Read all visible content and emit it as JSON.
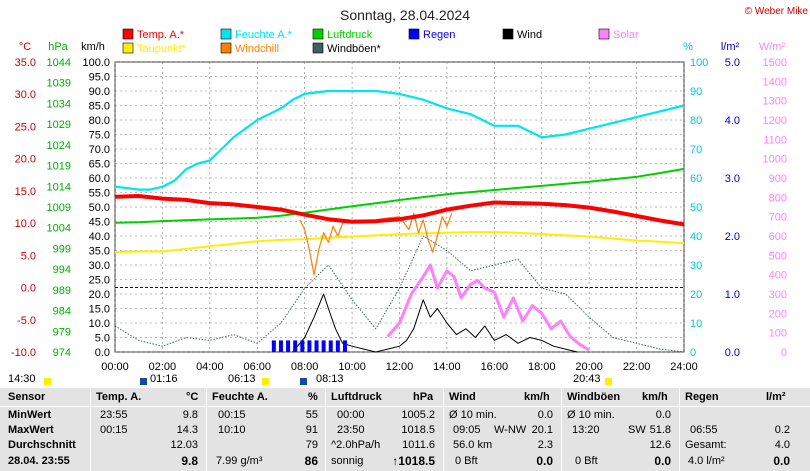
{
  "page": {
    "title": "Sonntag, 28.04.2024",
    "credit": "© Weber Mike"
  },
  "colors": {
    "temp": "#ff0000",
    "feuchte": "#00e5ee",
    "luftdruck": "#00d000",
    "taupunkt": "#ffee00",
    "windchill": "#ff8000",
    "windboeen": "#406060",
    "regen": "#0000ff",
    "wind": "#000000",
    "solar": "#ff80ff",
    "grid": "#7a7a7a",
    "dew0": "#0000cc"
  },
  "legend": [
    {
      "key": "temp",
      "label": "Temp. A.*",
      "color": "#ff0000"
    },
    {
      "key": "feuchte",
      "label": "Feuchte A.*",
      "color": "#00e5ee"
    },
    {
      "key": "luftdruck",
      "label": "Luftdruck",
      "color": "#00d000"
    },
    {
      "key": "regen",
      "label": "Regen",
      "color": "#0000ff"
    },
    {
      "key": "wind",
      "label": "Wind",
      "color": "#000000"
    },
    {
      "key": "solar",
      "label": "Solar",
      "color": "#ff80ff"
    },
    {
      "key": "taupunkt",
      "label": "Taupunkt*",
      "color": "#ffee00"
    },
    {
      "key": "windchill",
      "label": "Windchill",
      "color": "#ff8000"
    },
    {
      "key": "windboeen",
      "label": "Windböen*",
      "color": "#406060"
    }
  ],
  "chart_data": {
    "type": "line",
    "title": "Sonntag, 28.04.2024",
    "x_unit": "hour",
    "x_ticks": [
      "00:00",
      "02:00",
      "04:00",
      "06:00",
      "08:00",
      "10:00",
      "12:00",
      "14:00",
      "16:00",
      "18:00",
      "20:00",
      "22:00",
      "24:00"
    ],
    "axes": {
      "celsius": {
        "label": "°C",
        "range": [
          -10,
          35
        ],
        "ticks": [
          "35.0",
          "30.0",
          "25.0",
          "20.0",
          "15.0",
          "10.0",
          "5.0",
          "0.0",
          "-5.0",
          "-10.0"
        ]
      },
      "hpa": {
        "label": "hPa",
        "range": [
          974,
          1044
        ],
        "ticks": [
          "1044",
          "1039",
          "1034",
          "1029",
          "1024",
          "1019",
          "1014",
          "1009",
          "1004",
          "999",
          "994",
          "989",
          "984",
          "979",
          "974"
        ]
      },
      "kmh": {
        "label": "km/h",
        "range": [
          0,
          100
        ],
        "ticks": [
          "100.0",
          "95.0",
          "90.0",
          "85.0",
          "80.0",
          "75.0",
          "70.0",
          "65.0",
          "60.0",
          "55.0",
          "50.0",
          "45.0",
          "40.0",
          "35.0",
          "30.0",
          "25.0",
          "20.0",
          "15.0",
          "10.0",
          "5.0",
          "0.0"
        ]
      },
      "percent": {
        "label": "%",
        "range": [
          0,
          100
        ],
        "ticks": [
          "100",
          "90",
          "80",
          "70",
          "60",
          "50",
          "40",
          "30",
          "20",
          "10",
          "0"
        ]
      },
      "rain": {
        "label": "l/m²",
        "range": [
          0,
          5
        ],
        "ticks": [
          "5.0",
          "4.0",
          "3.0",
          "2.0",
          "1.0",
          "0.0"
        ]
      },
      "solar": {
        "label": "W/m²",
        "range": [
          0,
          1500
        ],
        "ticks": [
          "1500",
          "1400",
          "1300",
          "1200",
          "1100",
          "1000",
          "900",
          "800",
          "700",
          "600",
          "500",
          "400",
          "300",
          "200",
          "100",
          "0"
        ]
      }
    },
    "series": [
      {
        "name": "Temp. A.*",
        "axis": "celsius",
        "x": [
          0,
          1,
          2,
          3,
          4,
          5,
          6,
          7,
          8,
          9,
          10,
          11,
          12,
          13,
          14,
          15,
          16,
          17,
          18,
          19,
          20,
          21,
          22,
          23,
          24
        ],
        "y": [
          14.1,
          14.2,
          13.8,
          13.6,
          13.1,
          12.9,
          12.5,
          12.1,
          11.3,
          10.6,
          10.2,
          10.3,
          10.6,
          11.2,
          12.1,
          12.7,
          13.2,
          13.1,
          13.0,
          12.8,
          12.4,
          11.8,
          11.1,
          10.4,
          9.8
        ]
      },
      {
        "name": "Feuchte A.*",
        "axis": "percent",
        "x": [
          0,
          1,
          1.5,
          2,
          2.5,
          3,
          3.5,
          4,
          4.5,
          5,
          5.5,
          6,
          6.5,
          7,
          7.5,
          8,
          9,
          10,
          11,
          12,
          13,
          14,
          15,
          15.5,
          16,
          17,
          17.5,
          18,
          19,
          20,
          21,
          22,
          23,
          24
        ],
        "y": [
          57,
          56,
          56,
          57,
          59,
          63,
          65,
          66,
          70,
          74,
          77,
          80,
          82,
          84,
          87,
          89,
          90,
          90,
          90,
          89,
          87,
          84,
          82,
          80,
          78,
          78,
          76,
          74,
          75,
          77,
          79,
          81,
          83,
          85
        ]
      },
      {
        "name": "Luftdruck",
        "axis": "hpa",
        "x": [
          0,
          1,
          2,
          3,
          4,
          5,
          6,
          7,
          8,
          9,
          10,
          11,
          12,
          13,
          14,
          15,
          16,
          17,
          18,
          19,
          20,
          21,
          22,
          23,
          24
        ],
        "y": [
          1005.2,
          1005.3,
          1005.6,
          1005.8,
          1006.0,
          1006.2,
          1006.4,
          1006.9,
          1007.6,
          1008.4,
          1009.2,
          1009.9,
          1010.7,
          1011.4,
          1012.1,
          1012.6,
          1013.1,
          1013.6,
          1014.1,
          1014.6,
          1015.1,
          1015.7,
          1016.3,
          1017.2,
          1018.2
        ]
      },
      {
        "name": "Taupunkt*",
        "axis": "celsius",
        "x": [
          0,
          1,
          2,
          3,
          4,
          5,
          6,
          7,
          8,
          9,
          10,
          11,
          12,
          13,
          14,
          15,
          16,
          17,
          18,
          19,
          20,
          21,
          22,
          23,
          24
        ],
        "y": [
          5.5,
          5.6,
          5.6,
          6.0,
          6.4,
          6.8,
          7.2,
          7.4,
          7.5,
          7.7,
          7.9,
          8.1,
          8.3,
          8.4,
          8.5,
          8.6,
          8.6,
          8.5,
          8.3,
          8.1,
          7.9,
          7.6,
          7.3,
          7.1,
          6.9
        ]
      },
      {
        "name": "Windchill",
        "axis": "celsius",
        "x": [
          7.8,
          8.0,
          8.2,
          8.4,
          8.6,
          8.8,
          9.0,
          9.2,
          9.4,
          9.6,
          9.8,
          10.0,
          11.0,
          11.5,
          12.0,
          12.4,
          12.6,
          12.8,
          13.0,
          13.2,
          13.4,
          13.6,
          13.8,
          14.0,
          14.2
        ],
        "y": [
          10.5,
          9.0,
          5.8,
          2.0,
          6.0,
          8.5,
          7.0,
          9.5,
          8.0,
          10.0,
          10.2,
          10.4,
          10.5,
          10.8,
          11.0,
          9.0,
          11.5,
          8.5,
          10.5,
          7.5,
          5.5,
          8.0,
          11.0,
          9.5,
          11.5
        ]
      },
      {
        "name": "Wind",
        "axis": "kmh",
        "x": [
          7.5,
          8.0,
          8.4,
          8.8,
          9.0,
          9.3,
          9.6,
          10.0,
          10.5,
          11.0,
          11.5,
          12.0,
          12.3,
          12.6,
          13.0,
          13.3,
          13.6,
          14.0,
          14.4,
          14.8,
          15.2,
          15.6,
          16.0,
          16.5,
          17.0,
          17.5,
          18.0,
          18.5,
          19.0,
          19.5
        ],
        "y": [
          0,
          5,
          12,
          20,
          15,
          8,
          3,
          2,
          1,
          0,
          1,
          2,
          4,
          8,
          18,
          12,
          15,
          10,
          6,
          8,
          5,
          9,
          4,
          6,
          3,
          5,
          4,
          2,
          1,
          0
        ]
      },
      {
        "name": "Windböen*",
        "axis": "kmh",
        "x": [
          0,
          1,
          2,
          3,
          4,
          5,
          6,
          7,
          8,
          9,
          10,
          11,
          12,
          13,
          14,
          15,
          16,
          17,
          18,
          19,
          20,
          21,
          22,
          23,
          24
        ],
        "y": [
          9,
          4,
          2,
          5,
          4,
          6,
          3,
          10,
          22,
          30,
          18,
          8,
          22,
          40,
          35,
          28,
          30,
          32,
          22,
          20,
          12,
          5,
          3,
          1,
          0
        ]
      },
      {
        "name": "Solar",
        "axis": "solar",
        "x": [
          11.5,
          12.0,
          12.5,
          13.0,
          13.3,
          13.6,
          14.0,
          14.3,
          14.6,
          15.0,
          15.3,
          15.6,
          16.0,
          16.4,
          16.8,
          17.2,
          17.6,
          18.0,
          18.4,
          18.8,
          19.2,
          19.6,
          20.0
        ],
        "y": [
          80,
          150,
          300,
          390,
          450,
          330,
          420,
          390,
          280,
          350,
          370,
          330,
          310,
          180,
          280,
          160,
          240,
          200,
          120,
          160,
          80,
          40,
          10
        ]
      }
    ],
    "rain": {
      "name": "Regen",
      "axis": "rain",
      "x": [
        6.7,
        7.0,
        7.3,
        7.6,
        7.9,
        8.2,
        8.5,
        8.8,
        9.1,
        9.4,
        9.7
      ],
      "y": [
        0.2,
        0.2,
        0.2,
        0.2,
        0.2,
        0.2,
        0.2,
        0.2,
        0.2,
        0.2,
        0.2
      ]
    },
    "times_row": [
      "14:30",
      "01:16",
      "06:13",
      "08:13",
      "20:43"
    ]
  },
  "table": {
    "headers": {
      "sensor": "Sensor",
      "temp": "Temp. A.",
      "temp_unit": "°C",
      "feuchte": "Feuchte A.",
      "feuchte_unit": "%",
      "luft": "Luftdruck",
      "luft_unit": "hPa",
      "wind": "Wind",
      "wind_unit": "km/h",
      "boeen": "Windböen",
      "boeen_unit": "km/h",
      "regen": "Regen",
      "regen_unit": "l/m²"
    },
    "labels": {
      "min": "MinWert",
      "max": "MaxWert",
      "avg": "Durchschnitt",
      "now": "28.04. 23:55"
    },
    "temp": {
      "min_t": "23:55",
      "min_v": "9.8",
      "max_t": "00:15",
      "max_v": "14.3",
      "avg": "12.03",
      "now": "9.8"
    },
    "feuchte": {
      "min_t": "00:15",
      "min_v": "55",
      "max_t": "10:10",
      "max_v": "91",
      "avg": "79",
      "now_extra": "7.99 g/m³",
      "now": "86"
    },
    "luft": {
      "min_t": "00:00",
      "min_v": "1005.2",
      "max_t": "23:50",
      "max_v": "1018.5",
      "avg_t": "^2.0hPa/h",
      "avg": "1011.6",
      "now_t": "sonnig",
      "now": "↑1018.5"
    },
    "wind": {
      "min_t": "Ø 10 min.",
      "min_v": "0.0",
      "max_t": "09:05",
      "max_d": "W-NW",
      "max_v": "20.1",
      "avg_t": "56.0 km",
      "avg": "2.3",
      "now_t": "0 Bft",
      "now": "0.0"
    },
    "boeen": {
      "min_t": "Ø 10 min.",
      "min_v": "0.0",
      "max_t": "13:20",
      "max_d": "SW",
      "max_v": "51.8",
      "avg": "12.6",
      "now_t": "0 Bft",
      "now": "0.0"
    },
    "regen": {
      "max_t": "06:55",
      "max_v": "0.2",
      "avg_t": "Gesamt:",
      "avg": "4.0",
      "now_t": "4.0 l/m²",
      "now": "0.0"
    }
  }
}
